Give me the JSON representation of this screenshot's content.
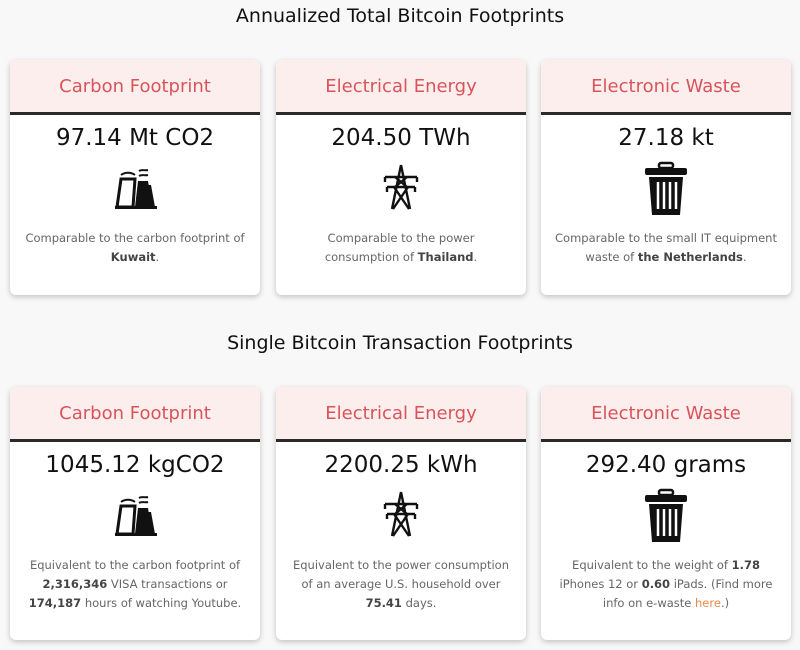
{
  "sections": [
    {
      "title": "Annualized Total Bitcoin Footprints",
      "cards": [
        {
          "header": "Carbon Footprint",
          "value": "97.14 Mt CO2",
          "icon": "factory-icon",
          "desc": [
            {
              "t": "Comparable to the carbon footprint of "
            },
            {
              "t": "Kuwait",
              "b": true
            },
            {
              "t": "."
            }
          ]
        },
        {
          "header": "Electrical Energy",
          "value": "204.50 TWh",
          "icon": "power-tower-icon",
          "desc": [
            {
              "t": "Comparable to the power consumption of "
            },
            {
              "t": "Thailand",
              "b": true
            },
            {
              "t": "."
            }
          ]
        },
        {
          "header": "Electronic Waste",
          "value": "27.18 kt",
          "icon": "trash-icon",
          "desc": [
            {
              "t": "Comparable to the small IT equipment waste of "
            },
            {
              "t": "the Netherlands",
              "b": true
            },
            {
              "t": "."
            }
          ]
        }
      ]
    },
    {
      "title": "Single Bitcoin Transaction Footprints",
      "cards": [
        {
          "header": "Carbon Footprint",
          "value": "1045.12 kgCO2",
          "icon": "factory-icon",
          "desc": [
            {
              "t": "Equivalent to the carbon footprint of "
            },
            {
              "t": "2,316,346",
              "b": true
            },
            {
              "t": " VISA transactions or "
            },
            {
              "t": "174,187",
              "b": true
            },
            {
              "t": " hours of watching Youtube."
            }
          ]
        },
        {
          "header": "Electrical Energy",
          "value": "2200.25 kWh",
          "icon": "power-tower-icon",
          "desc": [
            {
              "t": "Equivalent to the power consumption of an average U.S. household over "
            },
            {
              "t": "75.41",
              "b": true
            },
            {
              "t": " days."
            }
          ]
        },
        {
          "header": "Electronic Waste",
          "value": "292.40 grams",
          "icon": "trash-icon",
          "desc": [
            {
              "t": "Equivalent to the weight of "
            },
            {
              "t": "1.78",
              "b": true
            },
            {
              "t": " iPhones 12 or "
            },
            {
              "t": "0.60",
              "b": true
            },
            {
              "t": " iPads. (Find more info on e-waste "
            },
            {
              "t": "here",
              "link": true
            },
            {
              "t": ".)"
            }
          ]
        }
      ]
    }
  ],
  "colors": {
    "header_bg": "#fdeeee",
    "header_text": "#d9545a",
    "link": "#e38a4a"
  }
}
